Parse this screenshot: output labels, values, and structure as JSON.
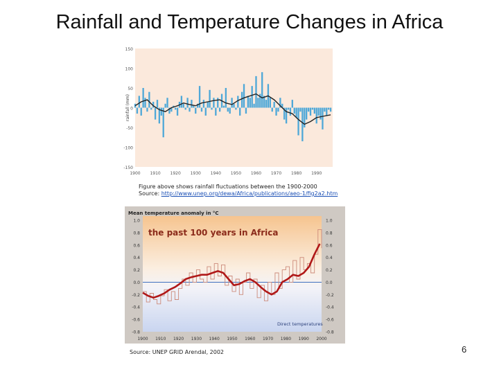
{
  "slide": {
    "title": "Rainfall and Temperature Changes in Africa",
    "caption_line1": "Figure above shows rainfall fluctuations between the 1900-2000",
    "caption_source_prefix": "Source: ",
    "caption_source_link": "http://www.unep.org/dewa/Africa/publications/aeo-1/fig2a2.htm",
    "source2": "Source: UNEP GRID Arendal, 2002",
    "page_number": "6"
  },
  "chart_data": [
    {
      "type": "bar",
      "ylabel": "rainfall (mm)",
      "xlabel": "",
      "ylim": [
        -150,
        150
      ],
      "yticks": [
        150,
        100,
        50,
        0,
        -50,
        -100,
        -150
      ],
      "xticks": [
        1900,
        1910,
        1920,
        1930,
        1940,
        1950,
        1960,
        1970,
        1980,
        1990
      ],
      "colors": {
        "background": "#fbe9dc",
        "bars": "#4fa8d8",
        "smooth": "#222222"
      },
      "series": [
        {
          "name": "",
          "x": [
            1900,
            1901,
            1902,
            1903,
            1904,
            1905,
            1906,
            1907,
            1908,
            1909,
            1910,
            1911,
            1912,
            1913,
            1914,
            1915,
            1916,
            1917,
            1918,
            1919,
            1920,
            1921,
            1922,
            1923,
            1924,
            1925,
            1926,
            1927,
            1928,
            1929,
            1930,
            1931,
            1932,
            1933,
            1934,
            1935,
            1936,
            1937,
            1938,
            1939,
            1940,
            1941,
            1942,
            1943,
            1944,
            1945,
            1946,
            1947,
            1948,
            1949,
            1950,
            1951,
            1952,
            1953,
            1954,
            1955,
            1956,
            1957,
            1958,
            1959,
            1960,
            1961,
            1962,
            1963,
            1964,
            1965,
            1966,
            1967,
            1968,
            1969,
            1970,
            1971,
            1972,
            1973,
            1974,
            1975,
            1976,
            1977,
            1978,
            1979,
            1980,
            1981,
            1982,
            1983,
            1984,
            1985,
            1986,
            1987,
            1988,
            1989,
            1990,
            1991,
            1992,
            1993,
            1994,
            1995,
            1996,
            1997
          ],
          "values": [
            10,
            -15,
            30,
            -20,
            50,
            25,
            -10,
            40,
            -5,
            15,
            -30,
            20,
            -40,
            -20,
            -75,
            10,
            25,
            -15,
            -10,
            5,
            -5,
            -20,
            15,
            30,
            10,
            -5,
            25,
            -10,
            20,
            5,
            -15,
            10,
            55,
            -10,
            20,
            -20,
            15,
            45,
            -5,
            25,
            -20,
            25,
            -10,
            35,
            5,
            50,
            -10,
            -15,
            25,
            10,
            -5,
            30,
            -20,
            40,
            60,
            -15,
            30,
            25,
            55,
            10,
            80,
            25,
            35,
            90,
            30,
            20,
            60,
            25,
            -10,
            15,
            -20,
            -10,
            25,
            10,
            -30,
            -40,
            -5,
            -20,
            20,
            -15,
            -25,
            -70,
            -10,
            -85,
            -50,
            -30,
            -10,
            -20,
            -5,
            -15,
            -40,
            -20,
            -30,
            -55,
            -10,
            -20,
            -5,
            -10
          ]
        },
        {
          "name": "",
          "x": [
            1900,
            1903,
            1906,
            1909,
            1912,
            1915,
            1918,
            1921,
            1924,
            1927,
            1930,
            1933,
            1936,
            1939,
            1942,
            1945,
            1948,
            1951,
            1954,
            1957,
            1960,
            1963,
            1966,
            1969,
            1972,
            1975,
            1978,
            1981,
            1984,
            1987,
            1990,
            1993,
            1997
          ],
          "values": [
            5,
            15,
            20,
            5,
            -5,
            -10,
            0,
            5,
            12,
            8,
            5,
            12,
            15,
            18,
            20,
            12,
            8,
            18,
            25,
            30,
            35,
            25,
            30,
            20,
            5,
            -10,
            -15,
            -30,
            -42,
            -35,
            -25,
            -22,
            -18
          ]
        }
      ]
    },
    {
      "type": "line",
      "title": "the past 100 years in Africa",
      "subtitle": "Mean temperature anomaly in °C",
      "annotation": "Direct temperatures",
      "xlabel": "",
      "ylabel": "",
      "ylim": [
        -0.8,
        1.0
      ],
      "yticks": [
        1.0,
        0.8,
        0.6,
        0.4,
        0.2,
        0.0,
        -0.2,
        -0.4,
        -0.6,
        -0.8
      ],
      "xlim": [
        1900,
        2000
      ],
      "xticks": [
        1900,
        1910,
        1920,
        1930,
        1940,
        1950,
        1960,
        1970,
        1980,
        1990,
        2000
      ],
      "colors": {
        "top": "#f6c48f",
        "bottom": "#c9d5f0",
        "annual": "#cc8a7a",
        "smooth": "#b01818",
        "zero": "#3d6ec0"
      },
      "series": [
        {
          "name": "",
          "x": [
            1900,
            1902,
            1904,
            1906,
            1908,
            1910,
            1912,
            1914,
            1916,
            1918,
            1920,
            1922,
            1924,
            1926,
            1928,
            1930,
            1932,
            1934,
            1936,
            1938,
            1940,
            1942,
            1944,
            1946,
            1948,
            1950,
            1952,
            1954,
            1956,
            1958,
            1960,
            1962,
            1964,
            1966,
            1968,
            1970,
            1972,
            1974,
            1976,
            1978,
            1980,
            1982,
            1984,
            1986,
            1988,
            1990,
            1992,
            1994,
            1996,
            1998,
            2000
          ],
          "values": [
            -0.15,
            -0.32,
            -0.18,
            -0.28,
            -0.35,
            -0.22,
            -0.12,
            -0.3,
            -0.15,
            -0.28,
            -0.1,
            0.05,
            -0.05,
            0.15,
            0.0,
            0.2,
            0.05,
            0.0,
            0.25,
            0.05,
            0.3,
            0.1,
            0.28,
            -0.05,
            0.1,
            -0.15,
            0.05,
            -0.2,
            0.0,
            0.15,
            -0.1,
            0.05,
            -0.25,
            -0.05,
            -0.3,
            0.0,
            -0.2,
            0.15,
            -0.1,
            0.2,
            0.25,
            0.0,
            0.35,
            0.05,
            0.4,
            0.2,
            0.3,
            0.15,
            0.45,
            0.85,
            0.55
          ]
        },
        {
          "name": "",
          "x": [
            1900,
            1903,
            1906,
            1909,
            1912,
            1915,
            1918,
            1921,
            1924,
            1927,
            1930,
            1933,
            1936,
            1939,
            1942,
            1945,
            1948,
            1951,
            1954,
            1957,
            1960,
            1963,
            1966,
            1969,
            1972,
            1975,
            1978,
            1981,
            1984,
            1987,
            1990,
            1993,
            1996,
            1999
          ],
          "values": [
            -0.17,
            -0.22,
            -0.25,
            -0.22,
            -0.18,
            -0.12,
            -0.08,
            -0.02,
            0.05,
            0.08,
            0.1,
            0.12,
            0.12,
            0.15,
            0.18,
            0.15,
            0.05,
            -0.05,
            -0.03,
            0.02,
            0.05,
            0.0,
            -0.08,
            -0.15,
            -0.2,
            -0.15,
            0.0,
            0.05,
            0.12,
            0.1,
            0.15,
            0.25,
            0.45,
            0.62
          ]
        }
      ]
    }
  ]
}
